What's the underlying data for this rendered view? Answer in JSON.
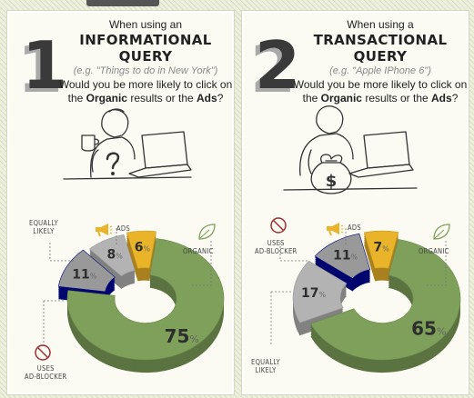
{
  "panels": [
    {
      "number": "1",
      "when": "When using an",
      "query_type": "INFORMATIONAL QUERY",
      "example": "(e.g. \"Things to do in New York\")",
      "question_pre": "Would you be more likely to click on the ",
      "organic_word": "Organic",
      "question_mid": " results or the ",
      "ads_word": "Ads",
      "question_end": "?",
      "labels": {
        "equally_likely": [
          "EQUALLY",
          "LIKELY"
        ],
        "ads": "ADS",
        "organic": "ORGANIC",
        "uses_adblocker": [
          "USES",
          "AD-BLOCKER"
        ]
      }
    },
    {
      "number": "2",
      "when": "When using a",
      "query_type": "TRANSACTIONAL QUERY",
      "example": "(e.g. \"Apple IPhone 6\")",
      "question_pre": "Would you be more likely to click on the ",
      "organic_word": "Organic",
      "question_mid": " results or the ",
      "ads_word": "Ads",
      "question_end": "?",
      "labels": {
        "uses_adblocker": [
          "USES",
          "AD-BLOCKER"
        ],
        "ads": "ADS",
        "organic": "ORGANIC",
        "equally_likely": [
          "EQUALLY",
          "LIKELY"
        ]
      }
    }
  ],
  "chart_data": [
    {
      "type": "pie",
      "variant": "3d-donut",
      "categories": [
        "Organic",
        "Uses ad-blocker",
        "Equally likely",
        "Ads"
      ],
      "values": [
        75,
        11,
        8,
        6
      ],
      "value_labels": [
        "75",
        "11",
        "8",
        "6"
      ],
      "unit": "%",
      "colors": {
        "organic": "#7ea05a",
        "uses_adblocker": "#9b2e30",
        "equally_likely": "#b3b3b3",
        "ads": "#e9b32a"
      }
    },
    {
      "type": "pie",
      "variant": "3d-donut",
      "categories": [
        "Organic",
        "Equally likely",
        "Uses ad-blocker",
        "Ads"
      ],
      "values": [
        65,
        17,
        11,
        7
      ],
      "value_labels": [
        "65",
        "17",
        "11",
        "7"
      ],
      "unit": "%",
      "colors": {
        "organic": "#7ea05a",
        "uses_adblocker": "#9b2e30",
        "equally_likely": "#b3b3b3",
        "ads": "#e9b32a"
      }
    }
  ]
}
